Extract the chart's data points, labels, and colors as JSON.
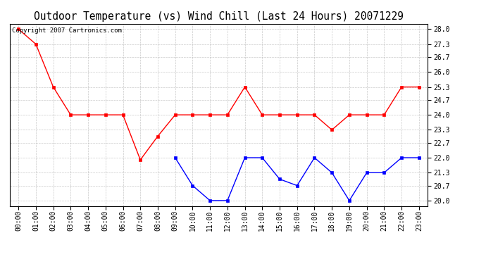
{
  "title": "Outdoor Temperature (vs) Wind Chill (Last 24 Hours) 20071229",
  "copyright_text": "Copyright 2007 Cartronics.com",
  "x_labels": [
    "00:00",
    "01:00",
    "02:00",
    "03:00",
    "04:00",
    "05:00",
    "06:00",
    "07:00",
    "08:00",
    "09:00",
    "10:00",
    "11:00",
    "12:00",
    "13:00",
    "14:00",
    "15:00",
    "16:00",
    "17:00",
    "18:00",
    "19:00",
    "20:00",
    "21:00",
    "22:00",
    "23:00"
  ],
  "y_ticks": [
    20.0,
    20.7,
    21.3,
    22.0,
    22.7,
    23.3,
    24.0,
    24.7,
    25.3,
    26.0,
    26.7,
    27.3,
    28.0
  ],
  "ylim": [
    19.75,
    28.25
  ],
  "temp_red": [
    28.0,
    27.3,
    25.3,
    24.0,
    24.0,
    24.0,
    24.0,
    21.9,
    23.0,
    24.0,
    24.0,
    24.0,
    24.0,
    25.3,
    24.0,
    24.0,
    24.0,
    24.0,
    23.3,
    24.0,
    24.0,
    24.0,
    25.3,
    25.3
  ],
  "wind_chill_blue": [
    null,
    null,
    null,
    null,
    null,
    null,
    null,
    null,
    null,
    22.0,
    20.7,
    20.0,
    20.0,
    22.0,
    22.0,
    21.0,
    20.7,
    22.0,
    21.3,
    20.0,
    21.3,
    21.3,
    22.0,
    22.0
  ],
  "line_color_red": "#ff0000",
  "line_color_blue": "#0000ff",
  "bg_color": "#ffffff",
  "grid_color": "#bbbbbb",
  "title_fontsize": 10.5,
  "tick_fontsize": 7,
  "copyright_fontsize": 6.5
}
